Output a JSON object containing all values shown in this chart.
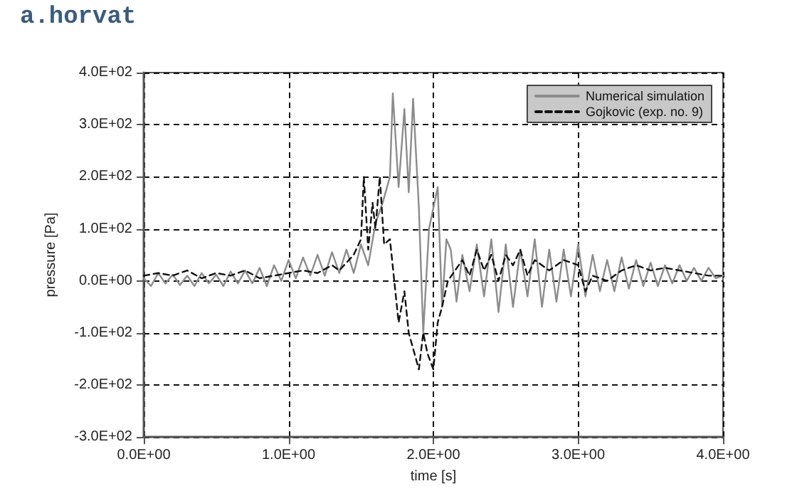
{
  "chart_data": {
    "type": "line",
    "annotations": [
      "a.horvat"
    ],
    "xlabel": "time [s]",
    "ylabel": "pressure [Pa]",
    "xlim": [
      0,
      4
    ],
    "xticks": [
      {
        "value": 0,
        "label": "0.0E+00"
      },
      {
        "value": 1,
        "label": "1.0E+00"
      },
      {
        "value": 2,
        "label": "2.0E+00"
      },
      {
        "value": 3,
        "label": "3.0E+00"
      },
      {
        "value": 4,
        "label": "4.0E+00"
      }
    ],
    "ylim": [
      -300,
      400
    ],
    "yticks": [
      {
        "value": -300,
        "label": "-3.0E+02"
      },
      {
        "value": -200,
        "label": "-2.0E+02"
      },
      {
        "value": -100,
        "label": "-1.0E+02"
      },
      {
        "value": 0,
        "label": "0.0E+00"
      },
      {
        "value": 100,
        "label": "1.0E+02"
      },
      {
        "value": 200,
        "label": "2.0E+02"
      },
      {
        "value": 300,
        "label": "3.0E+02"
      },
      {
        "value": 400,
        "label": "4.0E+02"
      }
    ],
    "grid": true,
    "legend": "top right",
    "marker": "none",
    "series": [
      {
        "name": "Numerical simulation",
        "color": "#8c8c8c",
        "line_style": "solid",
        "x": [
          0,
          0.05,
          0.1,
          0.15,
          0.2,
          0.25,
          0.3,
          0.35,
          0.4,
          0.45,
          0.5,
          0.55,
          0.6,
          0.65,
          0.7,
          0.75,
          0.8,
          0.85,
          0.9,
          0.95,
          1.0,
          1.05,
          1.1,
          1.15,
          1.2,
          1.25,
          1.3,
          1.35,
          1.4,
          1.45,
          1.5,
          1.55,
          1.6,
          1.65,
          1.7,
          1.72,
          1.76,
          1.8,
          1.83,
          1.86,
          1.9,
          1.93,
          1.97,
          2.03,
          2.06,
          2.09,
          2.12,
          2.16,
          2.2,
          2.25,
          2.3,
          2.35,
          2.4,
          2.45,
          2.5,
          2.55,
          2.6,
          2.65,
          2.7,
          2.75,
          2.8,
          2.85,
          2.9,
          2.95,
          3.0,
          3.05,
          3.1,
          3.15,
          3.2,
          3.25,
          3.3,
          3.35,
          3.4,
          3.45,
          3.5,
          3.55,
          3.6,
          3.65,
          3.7,
          3.75,
          3.8,
          3.85,
          3.9,
          3.95,
          4.0
        ],
        "values": [
          5,
          -10,
          15,
          -5,
          12,
          -8,
          10,
          -10,
          15,
          -5,
          12,
          -10,
          18,
          -5,
          20,
          -5,
          25,
          -10,
          30,
          0,
          40,
          5,
          45,
          10,
          50,
          10,
          55,
          15,
          60,
          15,
          70,
          30,
          110,
          150,
          200,
          360,
          180,
          330,
          170,
          350,
          140,
          -100,
          100,
          180,
          -50,
          80,
          60,
          -40,
          50,
          -20,
          70,
          -30,
          80,
          -60,
          70,
          -50,
          60,
          -30,
          80,
          -50,
          60,
          -40,
          60,
          -30,
          70,
          -30,
          50,
          -20,
          40,
          -20,
          45,
          -15,
          40,
          -10,
          35,
          -10,
          30,
          -5,
          30,
          0,
          25,
          0,
          25,
          5,
          10
        ]
      },
      {
        "name": "Gojkovic (exp. no. 9)",
        "color": "#111111",
        "line_style": "dashed",
        "x": [
          0,
          0.1,
          0.2,
          0.3,
          0.4,
          0.5,
          0.6,
          0.7,
          0.8,
          0.9,
          1.0,
          1.1,
          1.2,
          1.3,
          1.35,
          1.4,
          1.45,
          1.5,
          1.52,
          1.55,
          1.58,
          1.6,
          1.63,
          1.66,
          1.7,
          1.73,
          1.76,
          1.8,
          1.83,
          1.86,
          1.9,
          1.93,
          1.96,
          2.0,
          2.03,
          2.06,
          2.1,
          2.15,
          2.2,
          2.25,
          2.3,
          2.35,
          2.4,
          2.45,
          2.5,
          2.55,
          2.6,
          2.65,
          2.7,
          2.8,
          2.9,
          3.0,
          3.05,
          3.1,
          3.2,
          3.3,
          3.4,
          3.5,
          3.6,
          3.7,
          3.8,
          3.9,
          4.0
        ],
        "values": [
          10,
          15,
          10,
          20,
          5,
          15,
          10,
          20,
          5,
          10,
          15,
          20,
          15,
          30,
          20,
          35,
          50,
          80,
          200,
          60,
          150,
          100,
          200,
          70,
          80,
          0,
          -80,
          -20,
          -100,
          -130,
          -170,
          -100,
          -140,
          -170,
          -80,
          -50,
          0,
          20,
          40,
          10,
          60,
          20,
          50,
          0,
          50,
          30,
          60,
          10,
          40,
          20,
          40,
          30,
          -20,
          10,
          0,
          20,
          30,
          20,
          25,
          20,
          15,
          10,
          10
        ]
      }
    ]
  }
}
